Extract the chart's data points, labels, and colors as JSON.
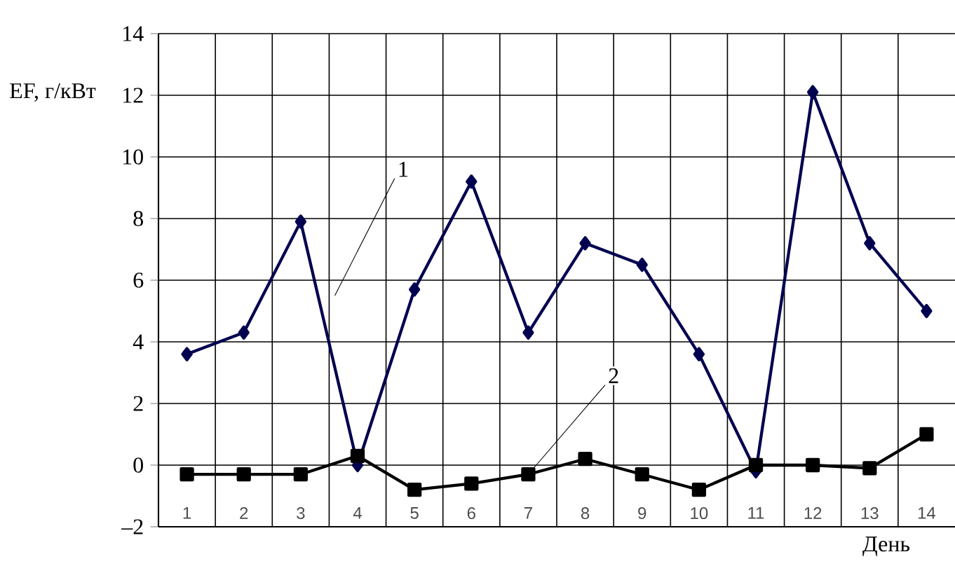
{
  "chart_data": {
    "type": "line",
    "categories": [
      "1",
      "2",
      "3",
      "4",
      "5",
      "6",
      "7",
      "8",
      "9",
      "10",
      "11",
      "12",
      "13",
      "14"
    ],
    "series": [
      {
        "color": "#000050",
        "marker": "diamond",
        "values": [
          3.6,
          4.3,
          7.9,
          0,
          5.7,
          9.2,
          4.3,
          7.2,
          6.5,
          3.6,
          -0.2,
          12.1,
          7.2,
          5.0
        ]
      },
      {
        "color": "#000000",
        "marker": "square",
        "values": [
          -0.3,
          -0.3,
          -0.3,
          0.3,
          -0.8,
          -0.6,
          -0.3,
          0.2,
          -0.3,
          -0.8,
          0,
          0,
          -0.1,
          1.0
        ]
      }
    ],
    "ylabel": "EF, г/кВт",
    "xlabel": "День",
    "ylim": [
      -2,
      14
    ],
    "yticks": [
      {
        "value": -2,
        "label": "–2"
      },
      0,
      2,
      4,
      6,
      8,
      10,
      12,
      14
    ],
    "grid": true,
    "legend": false,
    "annotations": [
      "1",
      {
        "text": "2",
        "x": "7",
        "y": -0.3
      }
    ]
  }
}
